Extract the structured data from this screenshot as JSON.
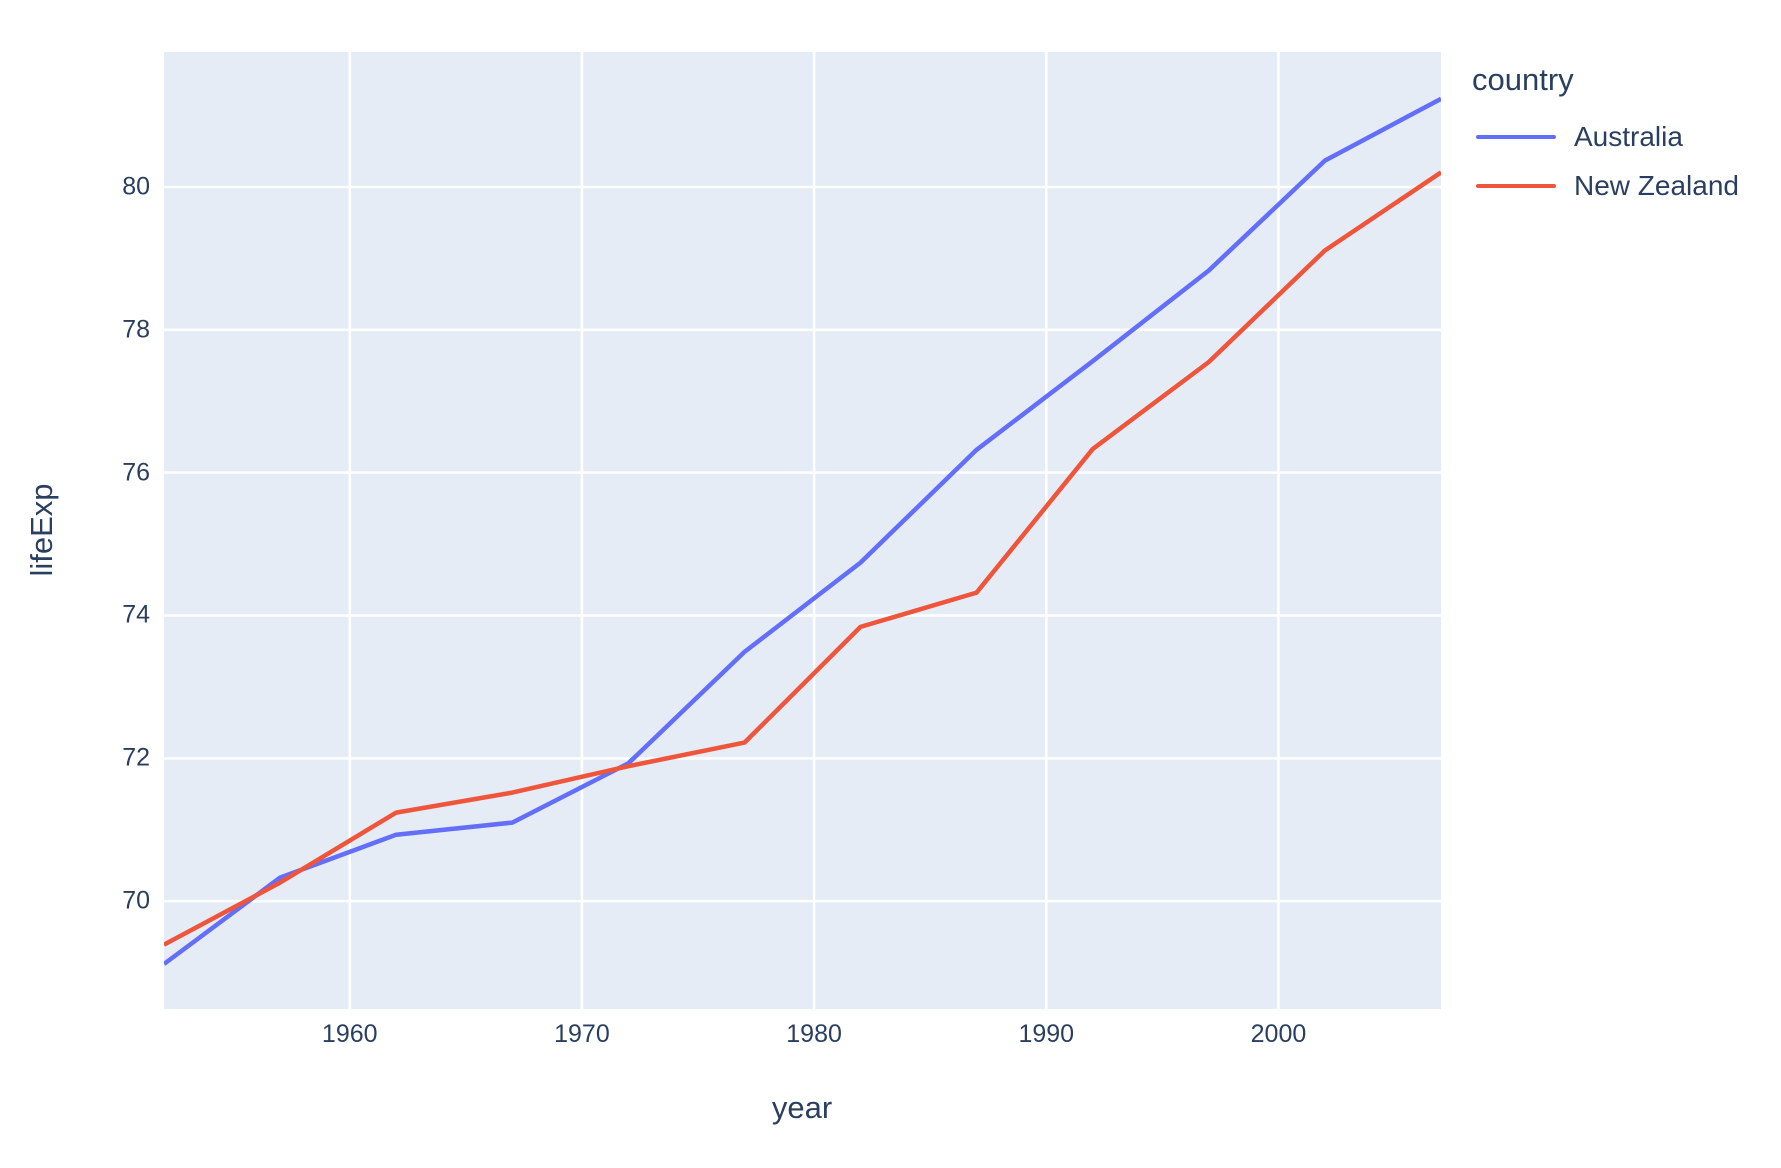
{
  "chart_data": {
    "type": "line",
    "title": "",
    "xlabel": "year",
    "ylabel": "lifeExp",
    "legend_title": "country",
    "x": [
      1952,
      1957,
      1962,
      1967,
      1972,
      1977,
      1982,
      1987,
      1992,
      1997,
      2002,
      2007
    ],
    "series": [
      {
        "name": "Australia",
        "color": "#636EFA",
        "values": [
          69.12,
          70.33,
          70.93,
          71.1,
          71.93,
          73.49,
          74.74,
          76.32,
          77.56,
          78.83,
          80.37,
          81.235
        ]
      },
      {
        "name": "New Zealand",
        "color": "#EF553B",
        "values": [
          69.39,
          70.26,
          71.24,
          71.52,
          71.89,
          72.22,
          73.84,
          74.32,
          76.33,
          77.55,
          79.11,
          80.204
        ]
      }
    ],
    "xlim": [
      1952,
      2007
    ],
    "ylim": [
      68.49,
      81.89
    ],
    "x_ticks": [
      1960,
      1970,
      1980,
      1990,
      2000
    ],
    "y_ticks": [
      70,
      72,
      74,
      76,
      78,
      80
    ],
    "grid": true,
    "legend_position": "top-right",
    "colors": {
      "plot_bg": "#E5ECF6",
      "grid": "#FFFFFF",
      "text": "#2A3F5F",
      "page_bg": "#FFFFFF"
    }
  }
}
